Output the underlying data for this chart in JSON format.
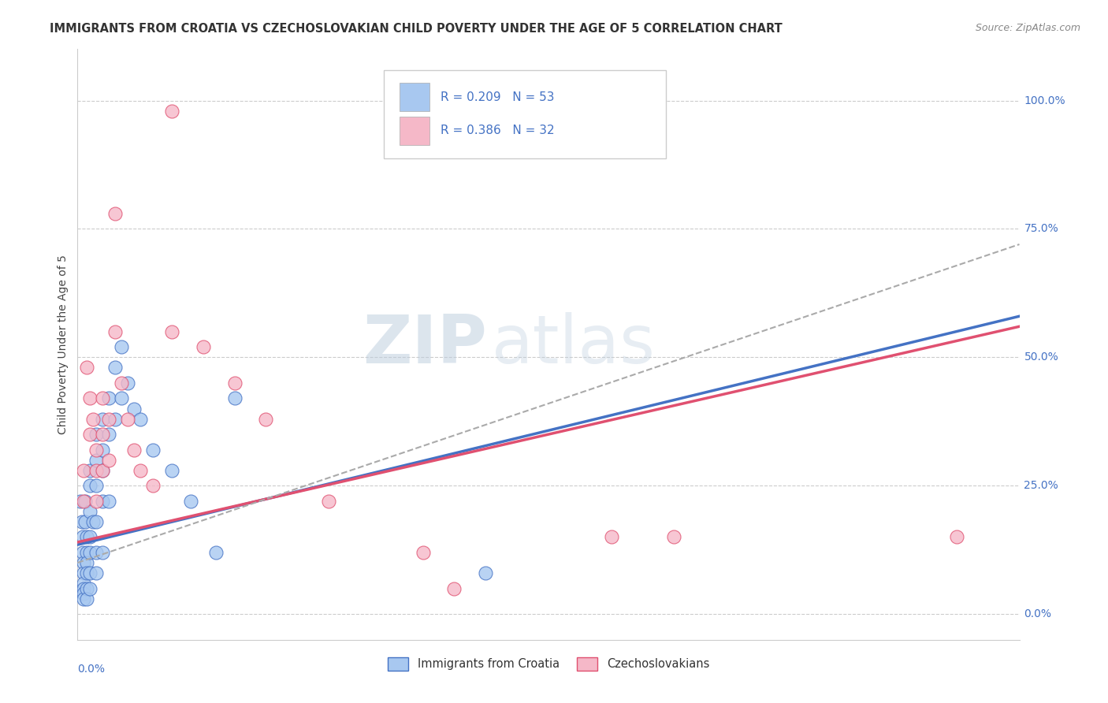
{
  "title": "IMMIGRANTS FROM CROATIA VS CZECHOSLOVAKIAN CHILD POVERTY UNDER THE AGE OF 5 CORRELATION CHART",
  "source": "Source: ZipAtlas.com",
  "ylabel": "Child Poverty Under the Age of 5",
  "ylabel_ticks": [
    "0.0%",
    "25.0%",
    "50.0%",
    "75.0%",
    "100.0%"
  ],
  "ytick_vals": [
    0.0,
    0.25,
    0.5,
    0.75,
    1.0
  ],
  "xlim": [
    0.0,
    0.15
  ],
  "ylim": [
    -0.05,
    1.1
  ],
  "color_blue": "#A8C8F0",
  "color_pink": "#F5B8C8",
  "color_blue_line": "#4472C4",
  "color_pink_line": "#E05070",
  "color_dashed": "#AAAAAA",
  "watermark_zip": "ZIP",
  "watermark_atlas": "atlas",
  "blue_scatter": [
    [
      0.0005,
      0.22
    ],
    [
      0.0007,
      0.18
    ],
    [
      0.0008,
      0.15
    ],
    [
      0.0008,
      0.12
    ],
    [
      0.0009,
      0.1
    ],
    [
      0.001,
      0.08
    ],
    [
      0.001,
      0.06
    ],
    [
      0.001,
      0.05
    ],
    [
      0.001,
      0.04
    ],
    [
      0.001,
      0.03
    ],
    [
      0.0012,
      0.22
    ],
    [
      0.0012,
      0.18
    ],
    [
      0.0015,
      0.15
    ],
    [
      0.0015,
      0.12
    ],
    [
      0.0015,
      0.1
    ],
    [
      0.0015,
      0.08
    ],
    [
      0.0015,
      0.05
    ],
    [
      0.0015,
      0.03
    ],
    [
      0.002,
      0.28
    ],
    [
      0.002,
      0.25
    ],
    [
      0.002,
      0.2
    ],
    [
      0.002,
      0.15
    ],
    [
      0.002,
      0.12
    ],
    [
      0.002,
      0.08
    ],
    [
      0.002,
      0.05
    ],
    [
      0.0025,
      0.18
    ],
    [
      0.003,
      0.35
    ],
    [
      0.003,
      0.3
    ],
    [
      0.003,
      0.25
    ],
    [
      0.003,
      0.18
    ],
    [
      0.003,
      0.12
    ],
    [
      0.003,
      0.08
    ],
    [
      0.004,
      0.38
    ],
    [
      0.004,
      0.32
    ],
    [
      0.004,
      0.28
    ],
    [
      0.004,
      0.22
    ],
    [
      0.004,
      0.12
    ],
    [
      0.005,
      0.42
    ],
    [
      0.005,
      0.35
    ],
    [
      0.005,
      0.22
    ],
    [
      0.006,
      0.48
    ],
    [
      0.006,
      0.38
    ],
    [
      0.007,
      0.52
    ],
    [
      0.007,
      0.42
    ],
    [
      0.008,
      0.45
    ],
    [
      0.009,
      0.4
    ],
    [
      0.01,
      0.38
    ],
    [
      0.012,
      0.32
    ],
    [
      0.015,
      0.28
    ],
    [
      0.018,
      0.22
    ],
    [
      0.022,
      0.12
    ],
    [
      0.025,
      0.42
    ],
    [
      0.065,
      0.08
    ]
  ],
  "pink_scatter": [
    [
      0.001,
      0.28
    ],
    [
      0.001,
      0.22
    ],
    [
      0.0015,
      0.48
    ],
    [
      0.002,
      0.42
    ],
    [
      0.002,
      0.35
    ],
    [
      0.0025,
      0.38
    ],
    [
      0.003,
      0.32
    ],
    [
      0.003,
      0.28
    ],
    [
      0.003,
      0.22
    ],
    [
      0.004,
      0.42
    ],
    [
      0.004,
      0.35
    ],
    [
      0.004,
      0.28
    ],
    [
      0.005,
      0.38
    ],
    [
      0.005,
      0.3
    ],
    [
      0.006,
      0.78
    ],
    [
      0.006,
      0.55
    ],
    [
      0.007,
      0.45
    ],
    [
      0.008,
      0.38
    ],
    [
      0.009,
      0.32
    ],
    [
      0.01,
      0.28
    ],
    [
      0.012,
      0.25
    ],
    [
      0.015,
      0.98
    ],
    [
      0.015,
      0.55
    ],
    [
      0.02,
      0.52
    ],
    [
      0.025,
      0.45
    ],
    [
      0.03,
      0.38
    ],
    [
      0.04,
      0.22
    ],
    [
      0.055,
      0.12
    ],
    [
      0.06,
      0.05
    ],
    [
      0.085,
      0.15
    ],
    [
      0.095,
      0.15
    ],
    [
      0.14,
      0.15
    ]
  ],
  "blue_line": [
    0.0,
    0.135,
    0.15,
    0.58
  ],
  "pink_line": [
    0.0,
    0.14,
    0.15,
    0.56
  ],
  "dash_line": [
    0.0,
    0.1,
    0.15,
    0.72
  ]
}
